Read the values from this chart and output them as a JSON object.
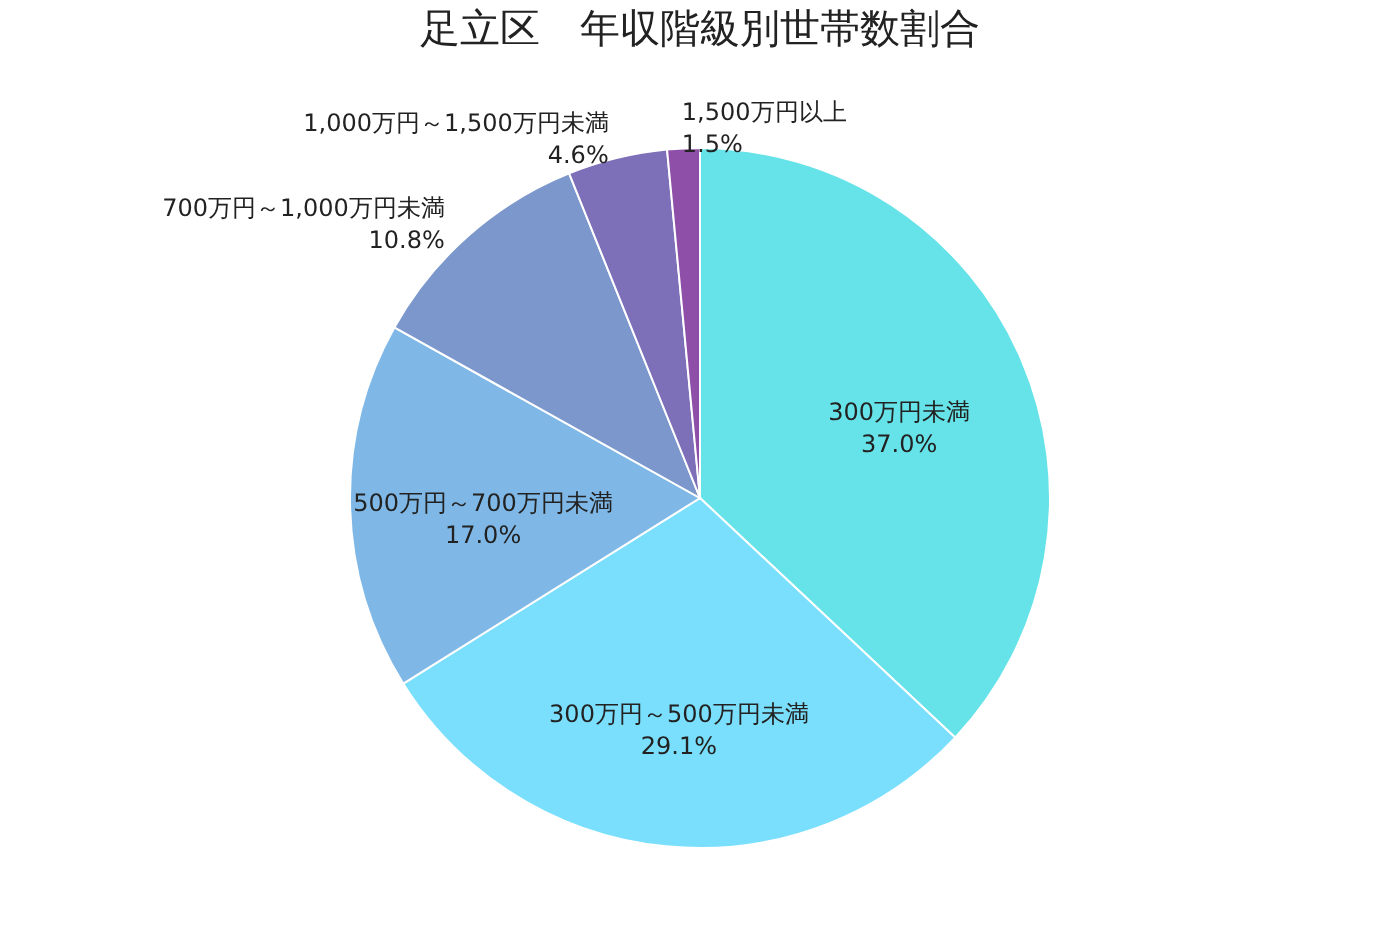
{
  "chart_data": {
    "type": "pie",
    "title": "足立区　年収階級別世帯数割合",
    "categories": [
      "300万円未満",
      "300万円～500万円未満",
      "500万円～700万円未満",
      "700万円～1,000万円未満",
      "1,000万円～1,500万円未満",
      "1,500万円以上"
    ],
    "values": [
      37.0,
      29.1,
      17.0,
      10.8,
      4.6,
      1.5
    ],
    "colors": [
      "#66e3e8",
      "#7adffc",
      "#7fb8e6",
      "#7b97cc",
      "#7d6fb8",
      "#8e4fa8"
    ],
    "value_labels": [
      "37.0%",
      "29.1%",
      "17.0%",
      "10.8%",
      "4.6%",
      "1.5%"
    ],
    "legend": false
  }
}
